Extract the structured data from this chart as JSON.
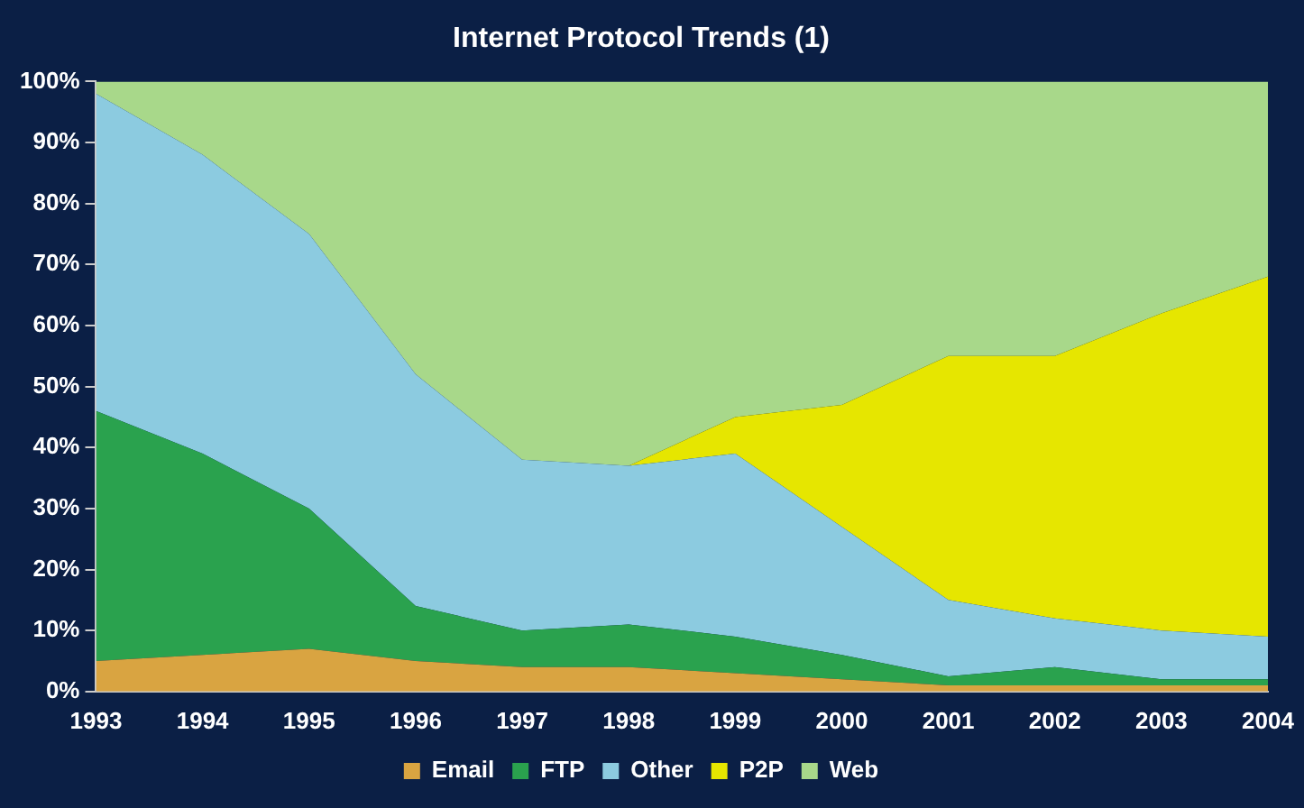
{
  "chart_data": {
    "type": "area",
    "title": "Internet Protocol Trends (1)",
    "stacked": true,
    "categories": [
      "1993",
      "1994",
      "1995",
      "1996",
      "1997",
      "1998",
      "1999",
      "2000",
      "2001",
      "2002",
      "2003",
      "2004"
    ],
    "series": [
      {
        "name": "Email",
        "color": "#d9a441",
        "values": [
          5,
          6,
          7,
          5,
          4,
          4,
          3,
          2,
          1,
          1,
          1,
          1
        ]
      },
      {
        "name": "FTP",
        "color": "#2aa24e",
        "values": [
          41,
          33,
          23,
          9,
          6,
          7,
          6,
          4,
          1.5,
          3,
          1,
          1
        ]
      },
      {
        "name": "Other",
        "color": "#8ccbe0",
        "values": [
          52,
          49,
          45,
          38,
          28,
          26,
          30,
          21,
          12.5,
          8,
          8,
          7
        ]
      },
      {
        "name": "P2P",
        "color": "#e6e600",
        "values": [
          0,
          0,
          0,
          0,
          0,
          0,
          6,
          20,
          40,
          43,
          52,
          59
        ]
      },
      {
        "name": "Web",
        "color": "#a8d88a",
        "values": [
          2,
          12,
          25,
          48,
          62,
          63,
          55,
          53,
          45,
          45,
          38,
          32
        ]
      }
    ],
    "ylim": [
      0,
      100
    ],
    "yticks": [
      {
        "value": 0,
        "label": "0%"
      },
      {
        "value": 10,
        "label": "10%"
      },
      {
        "value": 20,
        "label": "20%"
      },
      {
        "value": 30,
        "label": "30%"
      },
      {
        "value": 40,
        "label": "40%"
      },
      {
        "value": 50,
        "label": "50%"
      },
      {
        "value": 60,
        "label": "60%"
      },
      {
        "value": 70,
        "label": "70%"
      },
      {
        "value": 80,
        "label": "80%"
      },
      {
        "value": 90,
        "label": "90%"
      },
      {
        "value": 100,
        "label": "100%"
      }
    ],
    "grid": false,
    "legend": "bottom"
  }
}
